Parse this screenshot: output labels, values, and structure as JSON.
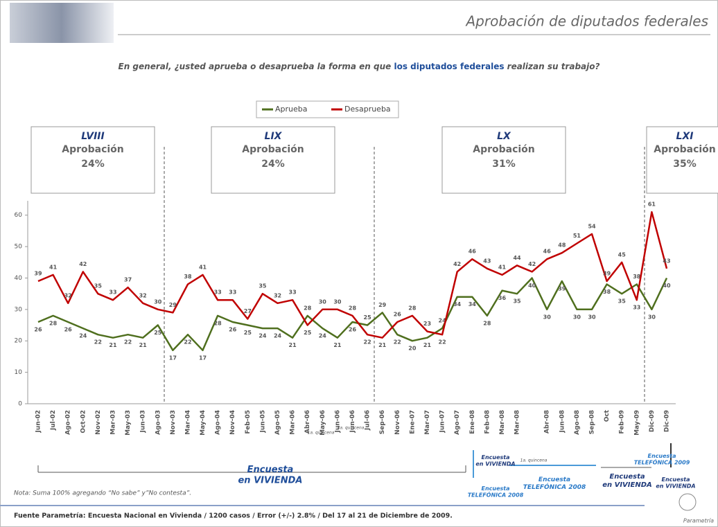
{
  "chart_data": {
    "type": "line",
    "title": "Aprobación de diputados federales",
    "question": [
      "En general, ¿usted aprueba o desaprueba la forma en que",
      "los diputados federales",
      "realizan su trabajo?"
    ],
    "categories": [
      "Jun-02",
      "Jul-02",
      "Ago-02",
      "Oct-02",
      "Nov-02",
      "Mar-03",
      "May-03",
      "Jun-03",
      "Ago-03",
      "Nov-03",
      "Mar-04",
      "May-04",
      "Ago-04",
      "Nov-04",
      "Feb-05",
      "Jun-05",
      "Ago-05",
      "Mar-06",
      "Abr-06",
      "May-06",
      "Jun-06",
      "Jun-06",
      "Jul-06",
      "Sep-06",
      "Nov-06",
      "Ene-07",
      "Mar-07",
      "Jun-07",
      "Ago-07",
      "Ene-08",
      "Feb-08",
      "Mar-08",
      "Mar-08",
      null,
      "Abr-08",
      "Jun-08",
      "Ago-08",
      "Sep-08",
      "Oct",
      "Feb-09",
      "May-09",
      "Dic-09",
      "Dic-09"
    ],
    "series": [
      {
        "name": "Aprueba",
        "color": "#4f6f1e",
        "values": [
          26,
          28,
          26,
          24,
          22,
          21,
          22,
          21,
          25,
          17,
          22,
          17,
          28,
          26,
          25,
          24,
          24,
          21,
          28,
          24,
          21,
          26,
          25,
          29,
          22,
          20,
          21,
          24,
          34,
          34,
          28,
          36,
          35,
          40,
          30,
          39,
          30,
          30,
          38,
          35,
          38,
          30,
          40
        ]
      },
      {
        "name": "Desaprueba",
        "color": "#c00000",
        "values": [
          39,
          41,
          32,
          42,
          35,
          33,
          37,
          32,
          30,
          29,
          38,
          41,
          33,
          33,
          27,
          35,
          32,
          33,
          25,
          30,
          30,
          28,
          22,
          21,
          26,
          28,
          23,
          22,
          42,
          46,
          43,
          41,
          44,
          42,
          46,
          48,
          51,
          54,
          39,
          45,
          33,
          61,
          43
        ]
      }
    ],
    "ylim": [
      0,
      65
    ],
    "yticks": [
      0,
      10,
      20,
      30,
      40,
      50,
      60
    ],
    "periods": [
      {
        "name": "LVIII",
        "label": "Aprobación",
        "value": "24%"
      },
      {
        "name": "LIX",
        "label": "Aprobación",
        "value": "24%"
      },
      {
        "name": "LX",
        "label": "Aprobación",
        "value": "31%"
      },
      {
        "name": "LXI",
        "label": "Aprobación",
        "value": "35%"
      }
    ],
    "annotations": [
      "1a. quincena",
      "2a. quincena",
      "1a. quincena"
    ],
    "surveys": [
      "Encuesta en VIVIENDA",
      "Encuesta en VIVIENDA",
      "Encuesta TELEFÓNICA 2008",
      "Encuesta TELEFÓNICA 2008",
      "Encuesta en VIVIENDA",
      "Encuesta TELEFÓNICA 2009",
      "Encuesta en VIVIENDA"
    ],
    "note": "Nota: Suma 100% agregando “No sabe” y”No contesta”.",
    "source": "Fuente Parametría: Encuesta Nacional en Vivienda / 1200 casos / Error (+/-) 2.8% / Del 17 al 21 de Diciembre de 2009.",
    "logo": "Parametría"
  }
}
